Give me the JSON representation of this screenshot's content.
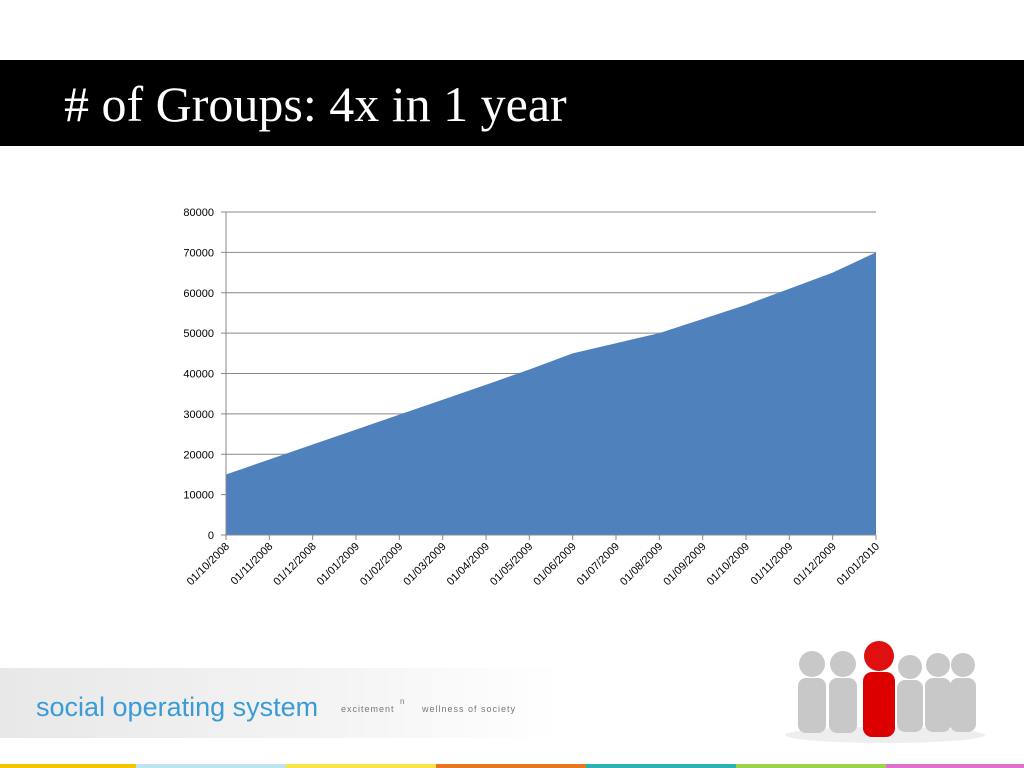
{
  "chart_data": {
    "type": "area",
    "title": "# of Groups: 4x in 1 year",
    "categories": [
      "01/10/2008",
      "01/11/2008",
      "01/12/2008",
      "01/01/2009",
      "01/02/2009",
      "01/03/2009",
      "01/04/2009",
      "01/05/2009",
      "01/06/2009",
      "01/07/2009",
      "01/08/2009",
      "01/09/2009",
      "01/10/2009",
      "01/11/2009",
      "01/12/2009",
      "01/01/2010"
    ],
    "values": [
      15000,
      18700,
      22400,
      26100,
      29800,
      33500,
      37200,
      41000,
      45000,
      47500,
      50000,
      53500,
      57000,
      61000,
      65000,
      70000
    ],
    "color": "#4f81bd",
    "ylim": [
      0,
      80000
    ],
    "yticks": [
      0,
      10000,
      20000,
      30000,
      40000,
      50000,
      60000,
      70000,
      80000
    ],
    "grid": true
  },
  "footer": {
    "brand": "social operating system",
    "tagline": "excitement",
    "superscript": "n",
    "tagline2": "wellness of society"
  }
}
